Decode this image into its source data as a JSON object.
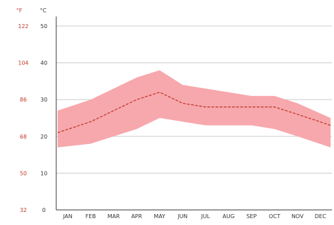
{
  "chart_data": {
    "type": "area",
    "title": "",
    "units": {
      "fahrenheit": "°F",
      "celsius": "°C"
    },
    "categories": [
      "JAN",
      "FEB",
      "MAR",
      "APR",
      "MAY",
      "JUN",
      "JUL",
      "AUG",
      "SEP",
      "OCT",
      "NOV",
      "DEC"
    ],
    "ylim_c": [
      0,
      50
    ],
    "y_ticks_c": [
      "0",
      "10",
      "20",
      "30",
      "40",
      "50"
    ],
    "y_ticks_f": [
      "32",
      "50",
      "68",
      "86",
      "104",
      "122"
    ],
    "series": [
      {
        "values": [
          27,
          30,
          33,
          36,
          38,
          34,
          33,
          32,
          31,
          31,
          29,
          25
        ]
      },
      {
        "values": [
          21,
          24,
          27,
          30,
          32,
          29,
          28,
          28,
          28,
          28,
          26,
          23
        ]
      },
      {
        "values": [
          17,
          18,
          20,
          22,
          25,
          24,
          23,
          23,
          23,
          22,
          20,
          17
        ]
      }
    ],
    "grid": true,
    "colors": {
      "band": "#f7a8ad",
      "mean_line": "#c0392b",
      "grid": "#cccccc",
      "axis": "#333333"
    }
  }
}
